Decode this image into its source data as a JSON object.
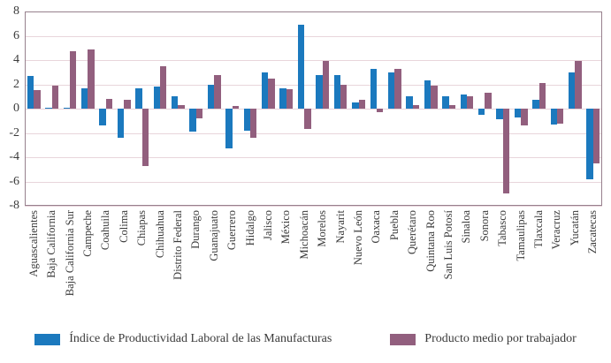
{
  "chart_data": {
    "type": "bar",
    "title": "",
    "xlabel": "",
    "ylabel": "",
    "ylim": [
      -8,
      8
    ],
    "ytick_labels": [
      "8",
      "6",
      "4",
      "2",
      "0",
      "-2",
      "-4",
      "-6",
      "-8"
    ],
    "grid": true,
    "legend_position": "bottom",
    "categories": [
      "Aguascalientes",
      "Baja California",
      "Baja California Sur",
      "Campeche",
      "Coahuila",
      "Colima",
      "Chiapas",
      "Chihuahua",
      "Distrito Federal",
      "Durango",
      "Guanajuato",
      "Guerrero",
      "Hidalgo",
      "Jalisco",
      "México",
      "Michoacán",
      "Morelos",
      "Nayarit",
      "Nuevo León",
      "Oaxaca",
      "Puebla",
      "Querétaro",
      "Quintana Roo",
      "San Luis Potosí",
      "Sinaloa",
      "Sonora",
      "Tabasco",
      "Tamaulipas",
      "Tlaxcala",
      "Veracruz",
      "Yucatán",
      "Zacatecas"
    ],
    "series": [
      {
        "name": "Índice de Productividad Laboral de las Manufacturas",
        "color": "#1b79be",
        "values": [
          2.7,
          0.1,
          0.1,
          1.7,
          -1.4,
          -2.4,
          1.7,
          1.8,
          1.0,
          -1.9,
          2.0,
          -3.3,
          -1.8,
          3.0,
          1.7,
          6.9,
          2.8,
          2.8,
          0.5,
          3.3,
          3.0,
          1.0,
          2.3,
          1.0,
          1.2,
          -0.5,
          -0.9,
          -0.7,
          0.7,
          -1.3,
          3.0,
          -5.8
        ]
      },
      {
        "name": "Producto medio por trabajador",
        "color": "#925f7e",
        "values": [
          1.5,
          1.9,
          4.7,
          4.9,
          0.8,
          0.7,
          -4.7,
          3.5,
          0.3,
          -0.8,
          2.8,
          0.2,
          -2.4,
          2.5,
          1.6,
          -1.7,
          3.9,
          2.0,
          0.7,
          -0.3,
          3.3,
          0.3,
          1.9,
          0.3,
          1.0,
          1.3,
          -7.0,
          -1.4,
          2.1,
          -1.2,
          3.9,
          -4.5
        ]
      }
    ],
    "colors": {
      "gridline": "#e8d5db",
      "plot_border": "#97808d",
      "axis_text": "#3a3a3a",
      "background": "#ffffff"
    }
  }
}
